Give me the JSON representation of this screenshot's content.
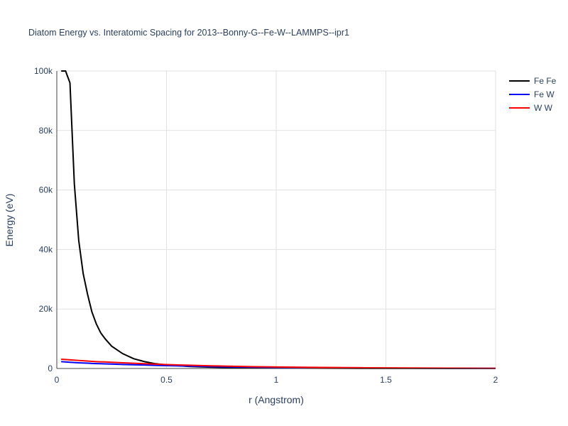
{
  "chart_data": {
    "type": "line",
    "title": "Diatom Energy vs. Interatomic Spacing for 2013--Bonny-G--Fe-W--LAMMPS--ipr1",
    "x_label": "r (Angstrom)",
    "y_label": "Energy (eV)",
    "x": [
      0.02,
      0.04,
      0.06,
      0.08,
      0.1,
      0.12,
      0.14,
      0.16,
      0.18,
      0.2,
      0.22,
      0.25,
      0.3,
      0.35,
      0.4,
      0.45,
      0.5,
      0.6,
      0.7,
      0.8,
      0.9,
      1,
      1.2,
      1.4,
      1.6,
      1.8,
      2
    ],
    "series": [
      {
        "name": "Fe Fe",
        "color": "#000000",
        "values": [
          100000,
          100000,
          96000,
          62000,
          43000,
          32000,
          25000,
          19000,
          15000,
          12000,
          10000,
          7500,
          5000,
          3300,
          2300,
          1600,
          1200,
          700,
          450,
          300,
          200,
          150,
          80,
          40,
          20,
          10,
          0
        ]
      },
      {
        "name": "Fe W",
        "color": "#0000ff",
        "values": [
          2300,
          2200,
          2100,
          2000,
          1900,
          1850,
          1800,
          1700,
          1650,
          1600,
          1550,
          1500,
          1350,
          1250,
          1150,
          1050,
          950,
          800,
          650,
          550,
          450,
          380,
          270,
          190,
          130,
          80,
          50
        ]
      },
      {
        "name": "W W",
        "color": "#ff0000",
        "values": [
          3100,
          3000,
          2900,
          2800,
          2700,
          2600,
          2500,
          2400,
          2300,
          2250,
          2200,
          2100,
          1900,
          1750,
          1600,
          1450,
          1300,
          1100,
          900,
          750,
          600,
          500,
          350,
          250,
          170,
          110,
          70
        ]
      }
    ],
    "xlim": [
      0,
      2
    ],
    "ylim": [
      0,
      100000
    ],
    "xticks": [
      0,
      0.5,
      1,
      1.5,
      2
    ],
    "yticks": [
      0,
      {
        "value": 20000,
        "label": "20k"
      },
      {
        "value": 40000,
        "label": "40k"
      },
      {
        "value": 60000,
        "label": "60k"
      },
      {
        "value": 80000,
        "label": "80k"
      },
      {
        "value": 100000,
        "label": "100k"
      }
    ],
    "grid": true
  }
}
